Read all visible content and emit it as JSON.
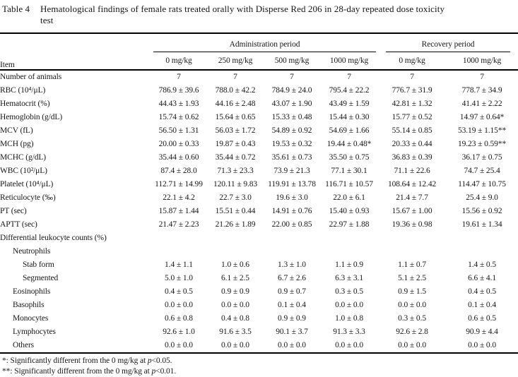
{
  "caption": {
    "label": "Table 4",
    "line1": "Hematological findings of female rats treated orally with Disperse Red 206 in 28-day repeated dose toxicity",
    "line2": "test"
  },
  "header": {
    "item": "Item",
    "groups": [
      {
        "label": "Administration period",
        "span": 4
      },
      {
        "label": "Recovery period",
        "span": 2
      }
    ],
    "doses": [
      "0 mg/kg",
      "250 mg/kg",
      "500 mg/kg",
      "1000 mg/kg",
      "0 mg/kg",
      "1000 mg/kg"
    ]
  },
  "rows": [
    {
      "label": "Number of animals",
      "indent": 0,
      "values": [
        "7",
        "7",
        "7",
        "7",
        "7",
        "7"
      ]
    },
    {
      "label": "RBC (10⁴/μL)",
      "indent": 0,
      "values": [
        "786.9 ± 39.6",
        "788.0 ± 42.2",
        "784.9 ± 24.0",
        "795.4 ± 22.2",
        "776.7 ± 31.9",
        "778.7 ± 34.9"
      ]
    },
    {
      "label": "Hematocrit (%)",
      "indent": 0,
      "values": [
        "44.43 ± 1.93",
        "44.16 ± 2.48",
        "43.07 ± 1.90",
        "43.49 ± 1.59",
        "42.81 ± 1.32",
        "41.41 ± 2.22"
      ]
    },
    {
      "label": "Hemoglobin (g/dL)",
      "indent": 0,
      "values": [
        "15.74 ± 0.62",
        "15.64 ± 0.65",
        "15.33 ± 0.48",
        "15.44 ± 0.30",
        "15.77 ± 0.52",
        "14.97 ± 0.64*"
      ]
    },
    {
      "label": "MCV (fL)",
      "indent": 0,
      "values": [
        "56.50 ± 1.31",
        "56.03 ± 1.72",
        "54.89 ± 0.92",
        "54.69 ± 1.66",
        "55.14 ± 0.85",
        "53.19 ± 1.15**"
      ]
    },
    {
      "label": "MCH (pg)",
      "indent": 0,
      "values": [
        "20.00 ± 0.33",
        "19.87 ± 0.43",
        "19.53 ± 0.32",
        "19.44 ± 0.48*",
        "20.33 ± 0.44",
        "19.23 ± 0.59**"
      ]
    },
    {
      "label": "MCHC (g/dL)",
      "indent": 0,
      "values": [
        "35.44 ± 0.60",
        "35.44 ± 0.72",
        "35.61 ± 0.73",
        "35.50 ± 0.75",
        "36.83 ± 0.39",
        "36.17 ± 0.75"
      ]
    },
    {
      "label": "WBC (10²/μL)",
      "indent": 0,
      "values": [
        "87.4 ± 28.0",
        "71.3 ± 23.3",
        "73.9 ± 21.3",
        "77.1 ± 30.1",
        "71.1 ± 22.6",
        "74.7 ± 25.4"
      ]
    },
    {
      "label": "Platelet (10⁴/μL)",
      "indent": 0,
      "values": [
        "112.71 ± 14.99",
        "120.11 ± 9.83",
        "119.91 ± 13.78",
        "116.71 ± 10.57",
        "108.64 ± 12.42",
        "114.47 ± 10.75"
      ]
    },
    {
      "label": "Reticulocyte (‰)",
      "indent": 0,
      "values": [
        "22.1 ± 4.2",
        "22.7 ± 3.0",
        "19.6 ± 3.0",
        "22.0 ± 6.1",
        "21.4 ± 7.7",
        "25.4 ± 9.0"
      ]
    },
    {
      "label": "PT (sec)",
      "indent": 0,
      "values": [
        "15.87 ± 1.44",
        "15.51 ± 0.44",
        "14.91 ± 0.76",
        "15.40 ± 0.93",
        "15.67 ± 1.00",
        "15.56 ± 0.92"
      ]
    },
    {
      "label": "APTT (sec)",
      "indent": 0,
      "values": [
        "21.47 ± 2.23",
        "21.26 ± 1.89",
        "22.00 ± 0.85",
        "22.97 ± 1.88",
        "19.36 ± 0.98",
        "19.61 ± 1.34"
      ]
    },
    {
      "label": "Differential leukocyte counts (%)",
      "indent": 0,
      "values": []
    },
    {
      "label": "Neutrophils",
      "indent": 1,
      "values": []
    },
    {
      "label": "Stab form",
      "indent": 2,
      "values": [
        "1.4 ± 1.1",
        "1.0 ± 0.6",
        "1.3 ± 1.0",
        "1.1 ± 0.9",
        "1.1 ± 0.7",
        "1.4 ± 0.5"
      ]
    },
    {
      "label": "Segmented",
      "indent": 2,
      "values": [
        "5.0 ± 1.0",
        "6.1 ± 2.5",
        "6.7 ± 2.6",
        "6.3 ± 3.1",
        "5.1 ± 2.5",
        "6.6 ± 4.1"
      ]
    },
    {
      "label": "Eosinophils",
      "indent": 1,
      "values": [
        "0.4 ± 0.5",
        "0.9 ± 0.9",
        "0.9 ± 0.7",
        "0.3 ± 0.5",
        "0.9 ± 1.5",
        "0.4 ± 0.5"
      ]
    },
    {
      "label": "Basophils",
      "indent": 1,
      "values": [
        "0.0 ± 0.0",
        "0.0 ± 0.0",
        "0.1 ± 0.4",
        "0.0 ± 0.0",
        "0.0 ± 0.0",
        "0.1 ± 0.4"
      ]
    },
    {
      "label": "Monocytes",
      "indent": 1,
      "values": [
        "0.6 ± 0.8",
        "0.4 ± 0.8",
        "0.9 ± 0.9",
        "1.0 ± 0.8",
        "0.3 ± 0.5",
        "0.6 ± 0.5"
      ]
    },
    {
      "label": "Lymphocytes",
      "indent": 1,
      "values": [
        "92.6 ± 1.0",
        "91.6 ± 3.5",
        "90.1 ± 3.7",
        "91.3 ± 3.3",
        "92.6 ± 2.8",
        "90.9 ± 4.4"
      ]
    },
    {
      "label": "Others",
      "indent": 1,
      "values": [
        "0.0 ± 0.0",
        "0.0 ± 0.0",
        "0.0 ± 0.0",
        "0.0 ± 0.0",
        "0.0 ± 0.0",
        "0.0 ± 0.0"
      ]
    }
  ],
  "footnotes": [
    {
      "marker": "*",
      "sep": ": ",
      "pre": "Significantly different from the 0 mg/kg at ",
      "p": "p",
      "post": "<0.05."
    },
    {
      "marker": "**",
      "sep": ": ",
      "pre": "Significantly different from the 0 mg/kg at ",
      "p": "p",
      "post": "<0.01."
    }
  ],
  "colors": {
    "text": "#161616",
    "rule": "#000000",
    "background": "#ffffff"
  }
}
